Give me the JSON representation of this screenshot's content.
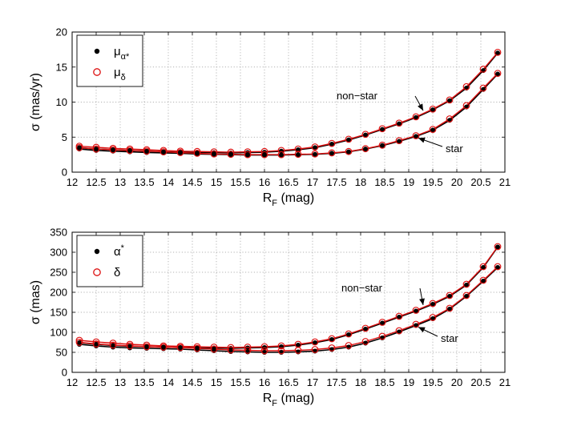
{
  "chart_data": [
    {
      "type": "line",
      "xlabel": "R",
      "xlabel_sub": "F",
      "xlabel_unit": " (mag)",
      "ylabel": "σ (mas/yr)",
      "xlim": [
        12,
        21
      ],
      "ylim": [
        0,
        20
      ],
      "xticks": [
        "12",
        "12.5",
        "13",
        "13.5",
        "14",
        "14.5",
        "15",
        "15.5",
        "16",
        "16.5",
        "17",
        "17.5",
        "18",
        "18.5",
        "19",
        "19.5",
        "20",
        "20.5",
        "21"
      ],
      "yticks": [
        "0",
        "5",
        "10",
        "15",
        "20"
      ],
      "grid": true,
      "legend_position": "top-left",
      "legend": [
        {
          "symbol": "μ",
          "sub": "α*",
          "marker": "dot",
          "color": "#000000"
        },
        {
          "symbol": "μ",
          "sub": "δ",
          "marker": "ring",
          "color": "#dd1111"
        }
      ],
      "annotations": [
        {
          "text": "non−star",
          "points_to": "non-star curves",
          "side": "left"
        },
        {
          "text": "star",
          "points_to": "star curves",
          "side": "right"
        }
      ],
      "x": [
        12.15,
        12.5,
        12.85,
        13.2,
        13.55,
        13.9,
        14.25,
        14.6,
        14.95,
        15.3,
        15.65,
        16.0,
        16.35,
        16.7,
        17.05,
        17.4,
        17.75,
        18.1,
        18.45,
        18.8,
        19.15,
        19.5,
        19.85,
        20.2,
        20.55,
        20.85
      ],
      "series": [
        {
          "name": "μα* non-star",
          "population": "non-star",
          "marker": "dot",
          "color": "#000000",
          "values": [
            3.5,
            3.3,
            3.2,
            3.1,
            3.0,
            2.9,
            2.85,
            2.8,
            2.8,
            2.75,
            2.8,
            2.85,
            3.0,
            3.2,
            3.5,
            4.0,
            4.6,
            5.3,
            6.1,
            6.9,
            7.8,
            8.9,
            10.2,
            12.0,
            14.5,
            17.0
          ]
        },
        {
          "name": "μδ non-star",
          "population": "non-star",
          "marker": "ring",
          "color": "#dd1111",
          "values": [
            3.7,
            3.55,
            3.4,
            3.3,
            3.2,
            3.1,
            3.0,
            2.95,
            2.9,
            2.85,
            2.9,
            2.95,
            3.1,
            3.3,
            3.6,
            4.1,
            4.7,
            5.4,
            6.2,
            7.0,
            7.9,
            9.0,
            10.3,
            12.2,
            14.7,
            17.1
          ]
        },
        {
          "name": "μα* star",
          "population": "star",
          "marker": "dot",
          "color": "#000000",
          "values": [
            3.3,
            3.1,
            3.0,
            2.9,
            2.8,
            2.75,
            2.7,
            2.6,
            2.55,
            2.5,
            2.45,
            2.45,
            2.45,
            2.5,
            2.55,
            2.7,
            2.9,
            3.3,
            3.8,
            4.4,
            5.1,
            6.0,
            7.4,
            9.3,
            11.8,
            14.0
          ]
        },
        {
          "name": "μδ star",
          "population": "star",
          "marker": "ring",
          "color": "#dd1111",
          "values": [
            3.5,
            3.3,
            3.2,
            3.1,
            3.0,
            2.9,
            2.8,
            2.7,
            2.6,
            2.55,
            2.5,
            2.5,
            2.5,
            2.55,
            2.6,
            2.75,
            2.95,
            3.35,
            3.85,
            4.5,
            5.2,
            6.1,
            7.6,
            9.5,
            12.0,
            14.1
          ]
        }
      ]
    },
    {
      "type": "line",
      "xlabel": "R",
      "xlabel_sub": "F",
      "xlabel_unit": " (mag)",
      "ylabel": "σ (mas)",
      "xlim": [
        12,
        21
      ],
      "ylim": [
        0,
        350
      ],
      "xticks": [
        "12",
        "12.5",
        "13",
        "13.5",
        "14",
        "14.5",
        "15",
        "15.5",
        "16",
        "16.5",
        "17",
        "17.5",
        "18",
        "18.5",
        "19",
        "19.5",
        "20",
        "20.5",
        "21"
      ],
      "yticks": [
        "0",
        "50",
        "100",
        "150",
        "200",
        "250",
        "300",
        "350"
      ],
      "grid": true,
      "legend_position": "top-left",
      "legend": [
        {
          "symbol": "α",
          "sup": "*",
          "marker": "dot",
          "color": "#000000"
        },
        {
          "symbol": "δ",
          "marker": "ring",
          "color": "#dd1111"
        }
      ],
      "annotations": [
        {
          "text": "non−star",
          "points_to": "non-star curves",
          "side": "left"
        },
        {
          "text": "star",
          "points_to": "star curves",
          "side": "right"
        }
      ],
      "x": [
        12.15,
        12.5,
        12.85,
        13.2,
        13.55,
        13.9,
        14.25,
        14.6,
        14.95,
        15.3,
        15.65,
        16.0,
        16.35,
        16.7,
        17.05,
        17.4,
        17.75,
        18.1,
        18.45,
        18.8,
        19.15,
        19.5,
        19.85,
        20.2,
        20.55,
        20.85
      ],
      "series": [
        {
          "name": "α* non-star",
          "population": "non-star",
          "marker": "dot",
          "color": "#000000",
          "values": [
            74,
            70,
            67,
            65,
            64,
            63,
            62,
            61,
            61,
            60,
            61,
            62,
            64,
            68,
            74,
            82,
            94,
            108,
            123,
            138,
            153,
            170,
            190,
            218,
            262,
            313
          ]
        },
        {
          "name": "δ non-star",
          "population": "non-star",
          "marker": "ring",
          "color": "#dd1111",
          "values": [
            80,
            76,
            73,
            70,
            68,
            66,
            65,
            64,
            63,
            62,
            63,
            64,
            66,
            70,
            76,
            84,
            96,
            110,
            125,
            140,
            155,
            172,
            192,
            220,
            264,
            314
          ]
        },
        {
          "name": "α* star",
          "population": "star",
          "marker": "dot",
          "color": "#000000",
          "values": [
            70,
            66,
            63,
            61,
            60,
            59,
            58,
            56,
            54,
            52,
            51,
            50,
            50,
            51,
            53,
            57,
            63,
            73,
            86,
            101,
            117,
            134,
            158,
            190,
            228,
            262
          ]
        },
        {
          "name": "δ star",
          "population": "star",
          "marker": "ring",
          "color": "#dd1111",
          "values": [
            75,
            71,
            68,
            66,
            64,
            63,
            62,
            60,
            58,
            56,
            55,
            54,
            54,
            55,
            57,
            61,
            67,
            77,
            90,
            104,
            120,
            137,
            160,
            192,
            230,
            264
          ]
        }
      ]
    }
  ]
}
